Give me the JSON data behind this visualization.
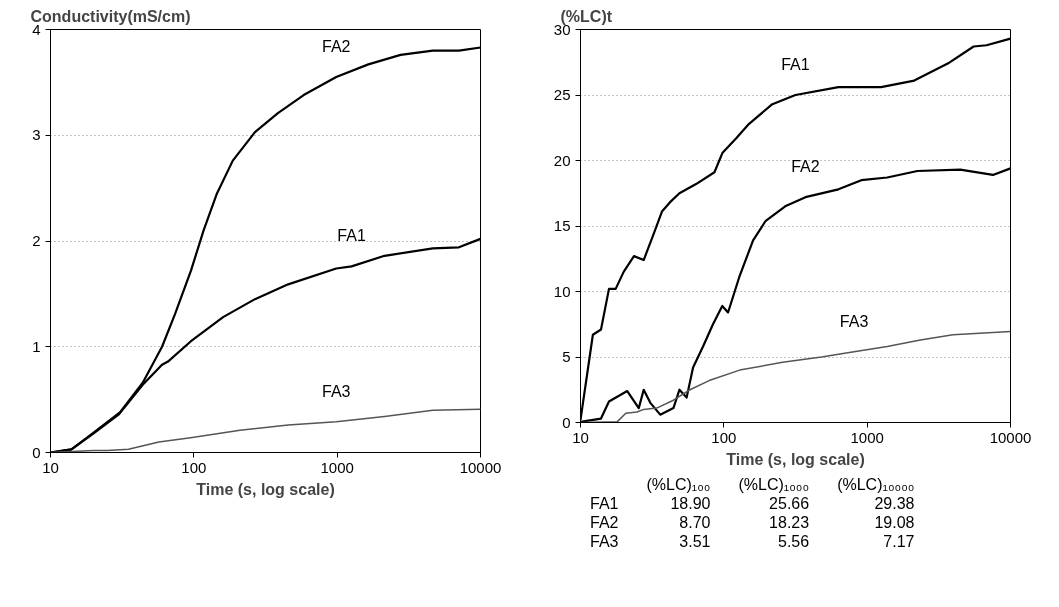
{
  "chart_data": [
    {
      "type": "line",
      "ylabel": "Conductivity(mS/cm)",
      "xlabel": "Time (s, log scale)",
      "log": "x",
      "xlim": [
        10,
        10000
      ],
      "xticks": [
        10,
        100,
        1000,
        10000
      ],
      "ylim": [
        0,
        4
      ],
      "yticks": [
        0,
        1,
        2,
        3,
        4
      ],
      "grid": "y",
      "legend": false,
      "series": [
        {
          "name": "FA2",
          "color": "#000000",
          "x": [
            10,
            14,
            20.1,
            30.5,
            44,
            60,
            74,
            95.5,
            117,
            145,
            187,
            267,
            386,
            584,
            985,
            1650,
            2770,
            4650,
            7070,
            10000
          ],
          "values": [
            0,
            0.03,
            0.19,
            0.38,
            0.66,
            1.0,
            1.31,
            1.72,
            2.1,
            2.45,
            2.76,
            3.03,
            3.21,
            3.38,
            3.55,
            3.67,
            3.76,
            3.8,
            3.8,
            3.83
          ]
        },
        {
          "name": "FA1",
          "color": "#000000",
          "x": [
            10,
            14,
            20,
            30,
            44,
            60,
            66,
            95,
            160,
            267,
            455,
            985,
            1260,
            2140,
            4650,
            7070,
            10000
          ],
          "values": [
            0,
            0.03,
            0.18,
            0.36,
            0.64,
            0.83,
            0.86,
            1.05,
            1.28,
            1.45,
            1.59,
            1.74,
            1.76,
            1.86,
            1.93,
            1.94,
            2.02
          ]
        },
        {
          "name": "FA3",
          "color": "#555555",
          "x": [
            10,
            20,
            25,
            35,
            57,
            95,
            210,
            455,
            985,
            2140,
            4650,
            10000
          ],
          "values": [
            0,
            0.02,
            0.02,
            0.03,
            0.1,
            0.14,
            0.21,
            0.26,
            0.29,
            0.34,
            0.4,
            0.41
          ]
        }
      ]
    },
    {
      "type": "line",
      "ylabel": "(%LC)t",
      "xlabel": "Time (s, log scale)",
      "log": "x",
      "xlim": [
        10,
        10000
      ],
      "xticks": [
        10,
        100,
        1000,
        10000
      ],
      "ylim": [
        0,
        30
      ],
      "yticks": [
        0,
        5,
        10,
        15,
        20,
        25,
        30
      ],
      "grid": "y",
      "legend": false,
      "series": [
        {
          "name": "FA1",
          "color": "#000000",
          "x": [
            10,
            12.2,
            13.9,
            15.8,
            17.6,
            20,
            23.6,
            27.6,
            32.4,
            37,
            42,
            49,
            64,
            86,
            98,
            122,
            150,
            218,
            316,
            630,
            1250,
            2130,
            3650,
            5530,
            6800,
            10000
          ],
          "values": [
            0.2,
            6.7,
            7.1,
            10.2,
            10.2,
            11.5,
            12.7,
            12.4,
            14.4,
            16.1,
            16.8,
            17.5,
            18.2,
            19.1,
            20.6,
            21.7,
            22.8,
            24.3,
            25.0,
            25.6,
            25.6,
            26.1,
            27.4,
            28.7,
            28.8,
            29.3
          ]
        },
        {
          "name": "FA2",
          "color": "#000000",
          "x": [
            10,
            13.9,
            15.8,
            21.2,
            25.5,
            27.6,
            30.7,
            36,
            44.5,
            49,
            55,
            61,
            71.6,
            84,
            97.5,
            107,
            129,
            160,
            196,
            268,
            371,
            630,
            910,
            1380,
            2240,
            4460,
            7540,
            10000
          ],
          "values": [
            0.05,
            0.3,
            1.6,
            2.4,
            1.1,
            2.5,
            1.5,
            0.6,
            1.1,
            2.5,
            1.9,
            4.2,
            5.8,
            7.5,
            8.9,
            8.4,
            11.2,
            13.9,
            15.4,
            16.5,
            17.2,
            17.8,
            18.5,
            18.7,
            19.2,
            19.3,
            18.9,
            19.4
          ]
        },
        {
          "name": "FA3",
          "color": "#555555",
          "x": [
            10,
            18,
            20.7,
            24.8,
            27.6,
            34,
            44.5,
            58,
            79,
            129,
            257,
            480,
            810,
            1380,
            2350,
            3970,
            10000
          ],
          "values": [
            0,
            0.05,
            0.7,
            0.8,
            1.0,
            1.1,
            1.7,
            2.5,
            3.2,
            4.0,
            4.6,
            5.0,
            5.4,
            5.8,
            6.3,
            6.7,
            6.95
          ]
        }
      ],
      "annotations": [
        "(%LC)₁₀₀",
        "(%LC)₁₀₀₀",
        "(%LC)₁₀₀₀₀",
        "FA1",
        "18.90",
        "25.66",
        "29.38",
        "FA2",
        "8.70",
        "18.23",
        "19.08",
        "FA3",
        "3.51",
        "5.56",
        "7.17"
      ]
    }
  ]
}
